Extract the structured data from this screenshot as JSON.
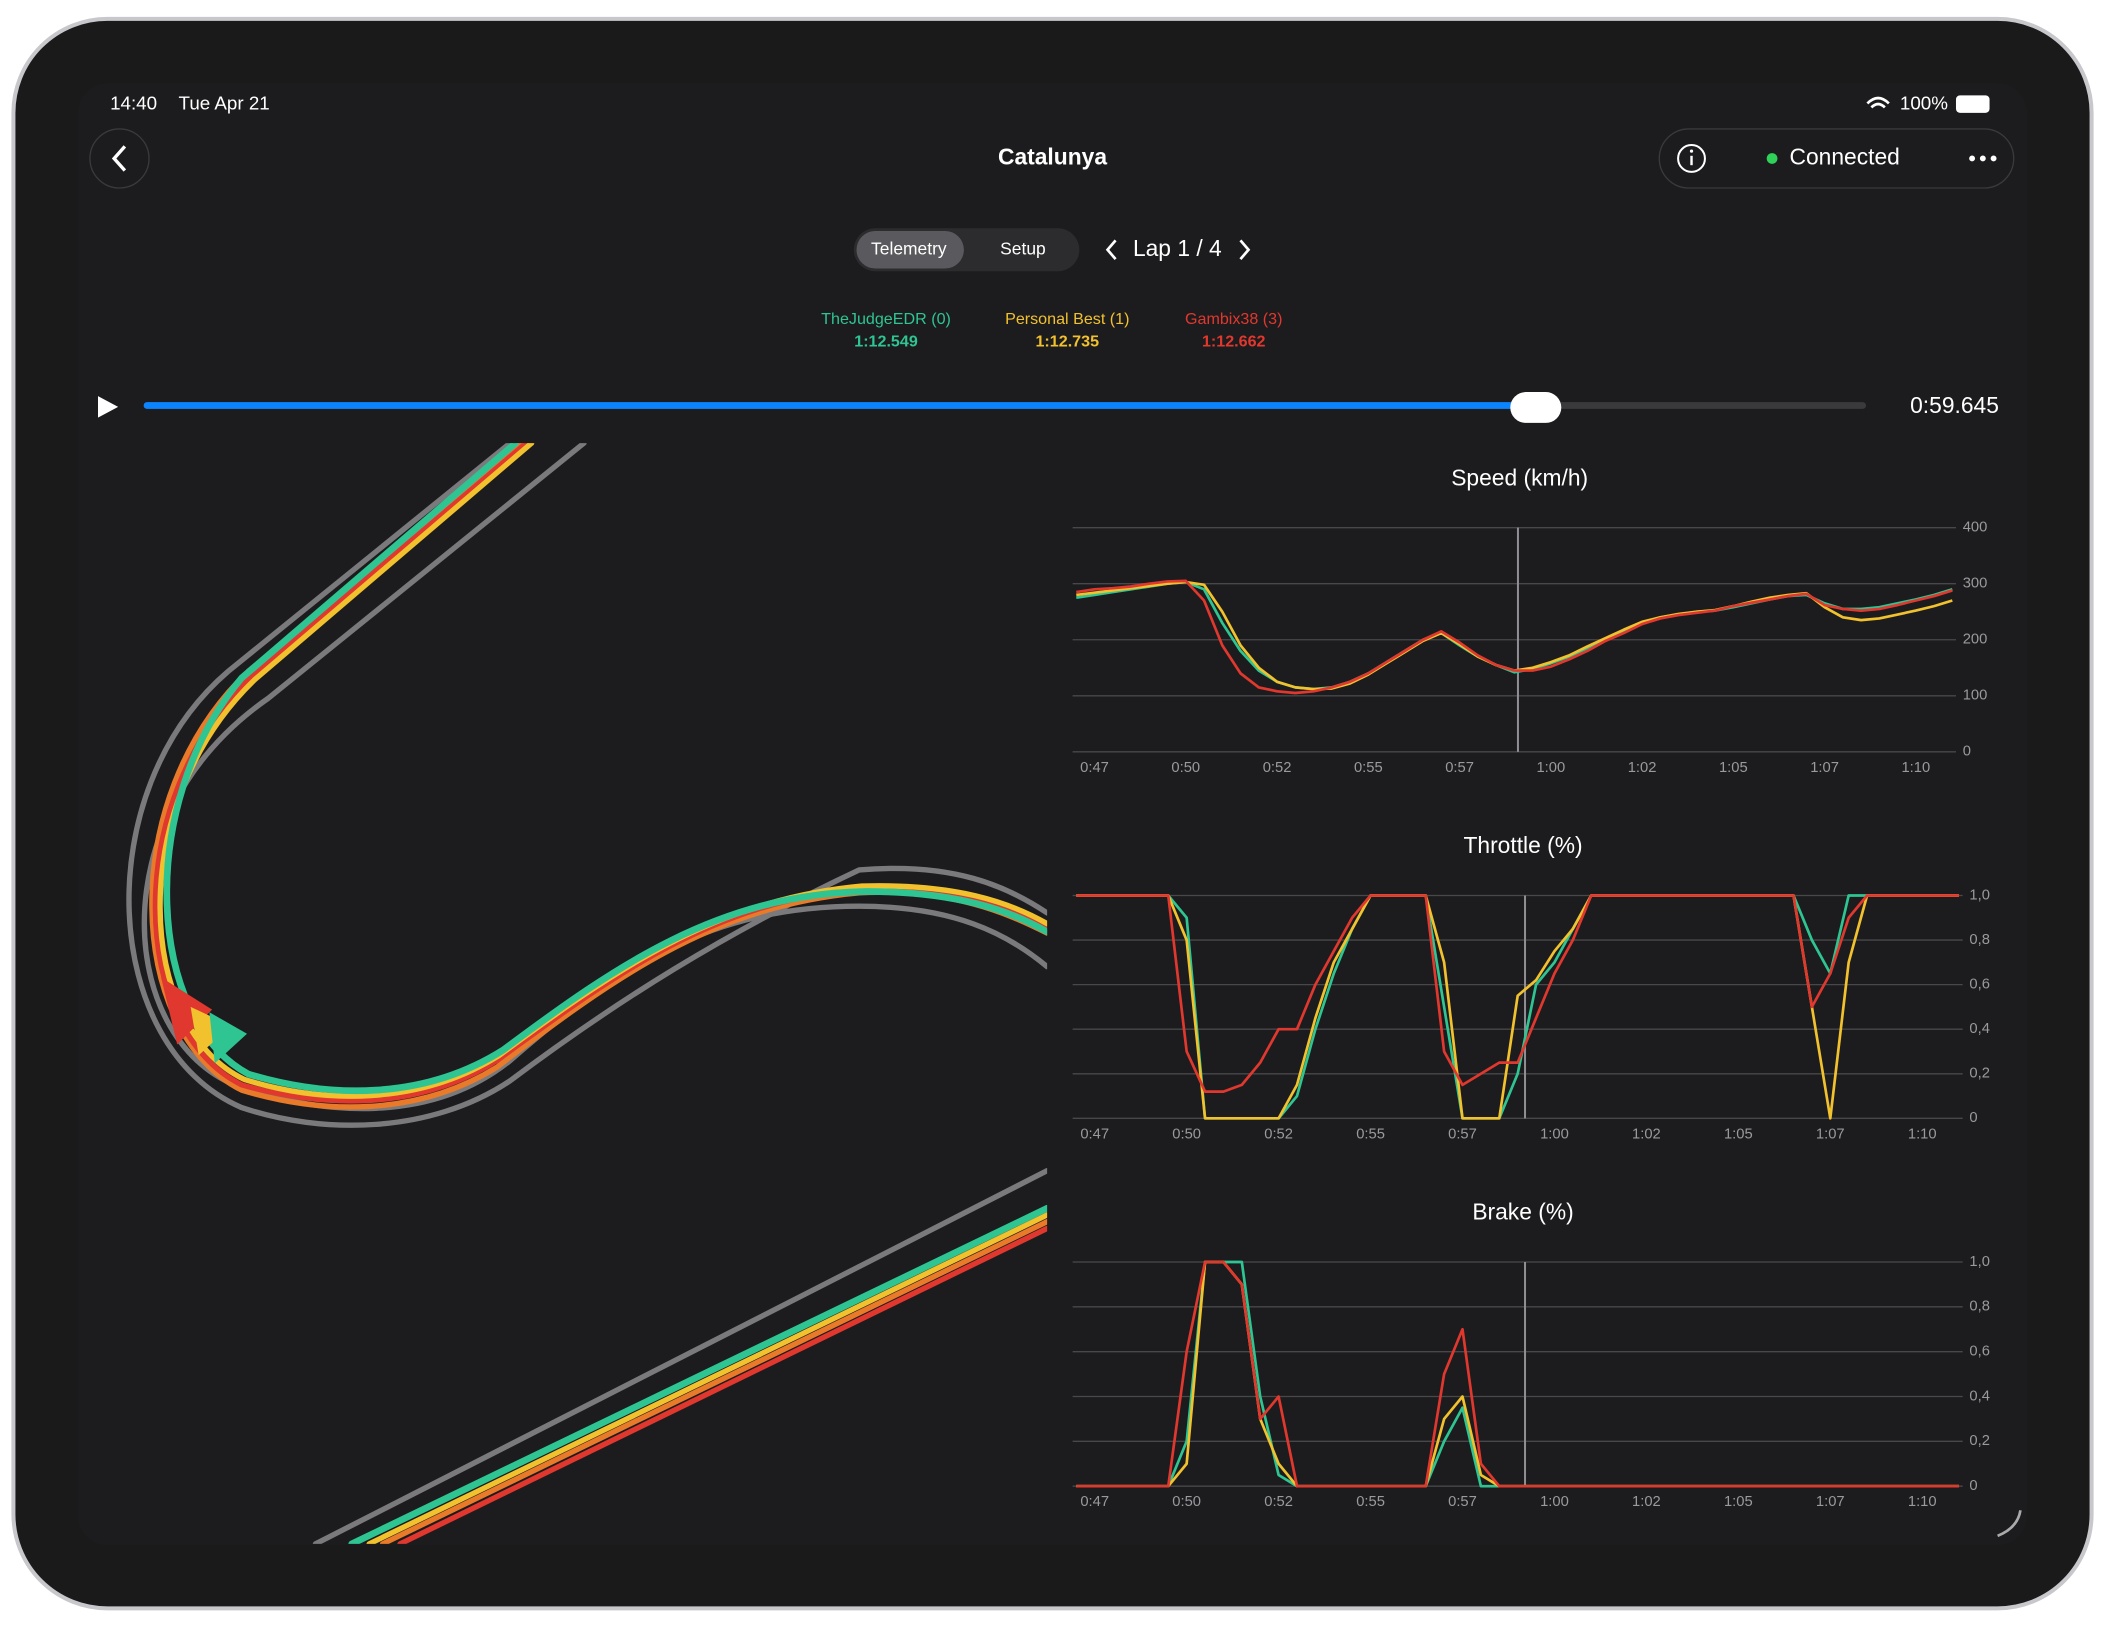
{
  "status_bar": {
    "time": "14:40",
    "date": "Tue Apr 21",
    "battery": "100%"
  },
  "header": {
    "title": "Catalunya",
    "status": "Connected"
  },
  "tabs": [
    "Telemetry",
    "Setup"
  ],
  "lap": "Lap 1 / 4",
  "drivers": [
    {
      "name": "TheJudgeEDR (0)",
      "time": "1:12.549",
      "color": "#2ec592"
    },
    {
      "name": "Personal Best (1)",
      "time": "1:12.735",
      "color": "#f2c12e"
    },
    {
      "name": "Gambix38 (3)",
      "time": "1:12.662",
      "color": "#e0382e"
    }
  ],
  "playback": {
    "time": "0:59.645"
  },
  "chart_data": [
    {
      "type": "line",
      "title": "Speed (km/h)",
      "x": [
        47,
        47.5,
        48,
        48.5,
        49,
        49.5,
        50,
        50.5,
        51,
        51.5,
        52,
        52.5,
        53,
        53.5,
        54,
        54.5,
        55,
        55.5,
        56,
        56.5,
        57,
        57.5,
        58,
        58.5,
        59,
        59.5,
        60,
        60.5,
        61,
        61.5,
        62,
        62.5,
        63,
        63.5,
        64,
        64.5,
        65,
        65.5,
        66,
        66.5,
        67,
        67.5,
        68,
        68.5,
        69,
        69.5,
        70,
        70.5,
        71
      ],
      "xlim": [
        46.9,
        71.1
      ],
      "xticks": [
        {
          "value": 47.5,
          "label": "0:47"
        },
        {
          "value": 50,
          "label": "0:50"
        },
        {
          "value": 52.5,
          "label": "0:52"
        },
        {
          "value": 55,
          "label": "0:55"
        },
        {
          "value": 57.5,
          "label": "0:57"
        },
        {
          "value": 60,
          "label": "1:00"
        },
        {
          "value": 62.5,
          "label": "1:02"
        },
        {
          "value": 65,
          "label": "1:05"
        },
        {
          "value": 67.5,
          "label": "1:07"
        },
        {
          "value": 70,
          "label": "1:10"
        }
      ],
      "ylim": [
        0,
        400
      ],
      "yticks": [
        0,
        100,
        200,
        300,
        400
      ],
      "grid": true,
      "cursor": 59.1,
      "series": [
        {
          "name": "TheJudgeEDR (0)",
          "color": "#2ec592",
          "values": [
            275,
            280,
            285,
            290,
            295,
            300,
            303,
            290,
            230,
            180,
            145,
            125,
            115,
            112,
            115,
            125,
            140,
            160,
            180,
            200,
            212,
            190,
            170,
            155,
            142,
            148,
            158,
            170,
            185,
            200,
            215,
            230,
            240,
            245,
            250,
            252,
            258,
            265,
            272,
            278,
            280,
            265,
            255,
            255,
            258,
            265,
            272,
            280,
            290
          ]
        },
        {
          "name": "Personal Best (1)",
          "color": "#f2c12e",
          "values": [
            280,
            284,
            288,
            292,
            296,
            300,
            303,
            298,
            250,
            190,
            150,
            125,
            115,
            112,
            113,
            122,
            138,
            158,
            178,
            198,
            212,
            192,
            170,
            155,
            145,
            150,
            160,
            172,
            188,
            203,
            218,
            232,
            240,
            246,
            250,
            253,
            260,
            268,
            275,
            280,
            283,
            258,
            240,
            235,
            238,
            245,
            252,
            260,
            270
          ]
        },
        {
          "name": "Gambix38 (3)",
          "color": "#e0382e",
          "values": [
            285,
            290,
            292,
            295,
            300,
            304,
            305,
            270,
            190,
            140,
            115,
            108,
            105,
            108,
            115,
            125,
            140,
            160,
            180,
            200,
            215,
            195,
            172,
            155,
            145,
            145,
            152,
            165,
            180,
            198,
            212,
            228,
            238,
            244,
            248,
            252,
            260,
            266,
            272,
            278,
            282,
            262,
            255,
            252,
            255,
            262,
            270,
            278,
            288
          ]
        }
      ]
    },
    {
      "type": "line",
      "title": "Throttle (%)",
      "x": [
        47,
        47.5,
        48,
        48.5,
        49,
        49.5,
        50,
        50.5,
        51,
        51.5,
        52,
        52.5,
        53,
        53.5,
        54,
        54.5,
        55,
        55.5,
        56,
        56.5,
        57,
        57.5,
        58,
        58.5,
        59,
        59.5,
        60,
        60.5,
        61,
        61.5,
        62,
        62.5,
        63,
        63.5,
        64,
        64.5,
        65,
        65.5,
        66,
        66.5,
        67,
        67.5,
        68,
        68.5,
        69,
        69.5,
        70,
        70.5,
        71
      ],
      "xlim": [
        46.9,
        71.1
      ],
      "xticks": [
        {
          "value": 47.5,
          "label": "0:47"
        },
        {
          "value": 50,
          "label": "0:50"
        },
        {
          "value": 52.5,
          "label": "0:52"
        },
        {
          "value": 55,
          "label": "0:55"
        },
        {
          "value": 57.5,
          "label": "0:57"
        },
        {
          "value": 60,
          "label": "1:00"
        },
        {
          "value": 62.5,
          "label": "1:02"
        },
        {
          "value": 65,
          "label": "1:05"
        },
        {
          "value": 67.5,
          "label": "1:07"
        },
        {
          "value": 70,
          "label": "1:10"
        }
      ],
      "ylim": [
        0,
        1
      ],
      "yticks": [
        0,
        {
          "value": 0.2,
          "label": "0,2"
        },
        {
          "value": 0.4,
          "label": "0,4"
        },
        {
          "value": 0.6,
          "label": "0,6"
        },
        {
          "value": 0.8,
          "label": "0,8"
        },
        {
          "value": 1,
          "label": "1,0"
        }
      ],
      "grid": true,
      "cursor": 59.2,
      "series": [
        {
          "name": "TheJudgeEDR (0)",
          "color": "#2ec592",
          "values": [
            1,
            1,
            1,
            1,
            1,
            1,
            0.9,
            0,
            0,
            0,
            0,
            0,
            0.1,
            0.4,
            0.65,
            0.85,
            1,
            1,
            1,
            1,
            0.5,
            0,
            0,
            0,
            0.2,
            0.6,
            0.7,
            0.85,
            1,
            1,
            1,
            1,
            1,
            1,
            1,
            1,
            1,
            1,
            1,
            1,
            0.8,
            0.65,
            1,
            1,
            1,
            1,
            1,
            1,
            1
          ]
        },
        {
          "name": "Personal Best (1)",
          "color": "#f2c12e",
          "values": [
            1,
            1,
            1,
            1,
            1,
            1,
            0.8,
            0,
            0,
            0,
            0,
            0,
            0.15,
            0.45,
            0.7,
            0.85,
            1,
            1,
            1,
            1,
            0.7,
            0,
            0,
            0,
            0.55,
            0.62,
            0.75,
            0.85,
            1,
            1,
            1,
            1,
            1,
            1,
            1,
            1,
            1,
            1,
            1,
            1,
            0.5,
            0,
            0.7,
            1,
            1,
            1,
            1,
            1,
            1
          ]
        },
        {
          "name": "Gambix38 (3)",
          "color": "#e0382e",
          "values": [
            1,
            1,
            1,
            1,
            1,
            1,
            0.3,
            0.12,
            0.12,
            0.15,
            0.25,
            0.4,
            0.4,
            0.6,
            0.75,
            0.9,
            1,
            1,
            1,
            1,
            0.3,
            0.15,
            0.2,
            0.25,
            0.25,
            0.45,
            0.65,
            0.8,
            1,
            1,
            1,
            1,
            1,
            1,
            1,
            1,
            1,
            1,
            1,
            1,
            0.5,
            0.65,
            0.9,
            1,
            1,
            1,
            1,
            1,
            1
          ]
        }
      ]
    },
    {
      "type": "line",
      "title": "Brake (%)",
      "x": [
        47,
        47.5,
        48,
        48.5,
        49,
        49.5,
        50,
        50.5,
        51,
        51.5,
        52,
        52.5,
        53,
        53.5,
        54,
        54.5,
        55,
        55.5,
        56,
        56.5,
        57,
        57.5,
        58,
        58.5,
        59,
        59.5,
        60,
        60.5,
        61,
        61.5,
        62,
        62.5,
        63,
        63.5,
        64,
        64.5,
        65,
        65.5,
        66,
        66.5,
        67,
        67.5,
        68,
        68.5,
        69,
        69.5,
        70,
        70.5,
        71
      ],
      "xlim": [
        46.9,
        71.1
      ],
      "xticks": [
        {
          "value": 47.5,
          "label": "0:47"
        },
        {
          "value": 50,
          "label": "0:50"
        },
        {
          "value": 52.5,
          "label": "0:52"
        },
        {
          "value": 55,
          "label": "0:55"
        },
        {
          "value": 57.5,
          "label": "0:57"
        },
        {
          "value": 60,
          "label": "1:00"
        },
        {
          "value": 62.5,
          "label": "1:02"
        },
        {
          "value": 65,
          "label": "1:05"
        },
        {
          "value": 67.5,
          "label": "1:07"
        },
        {
          "value": 70,
          "label": "1:10"
        }
      ],
      "ylim": [
        0,
        1
      ],
      "yticks": [
        0,
        {
          "value": 0.2,
          "label": "0,2"
        },
        {
          "value": 0.4,
          "label": "0,4"
        },
        {
          "value": 0.6,
          "label": "0,6"
        },
        {
          "value": 0.8,
          "label": "0,8"
        },
        {
          "value": 1,
          "label": "1,0"
        }
      ],
      "grid": true,
      "cursor": 59.2,
      "series": [
        {
          "name": "TheJudgeEDR (0)",
          "color": "#2ec592",
          "values": [
            0,
            0,
            0,
            0,
            0,
            0,
            0.2,
            1,
            1,
            1,
            0.4,
            0.05,
            0,
            0,
            0,
            0,
            0,
            0,
            0,
            0,
            0.2,
            0.35,
            0,
            0,
            0,
            0,
            0,
            0,
            0,
            0,
            0,
            0,
            0,
            0,
            0,
            0,
            0,
            0,
            0,
            0,
            0,
            0,
            0,
            0,
            0,
            0,
            0,
            0,
            0
          ]
        },
        {
          "name": "Personal Best (1)",
          "color": "#f2c12e",
          "values": [
            0,
            0,
            0,
            0,
            0,
            0,
            0.1,
            1,
            1,
            0.9,
            0.3,
            0.1,
            0,
            0,
            0,
            0,
            0,
            0,
            0,
            0,
            0.3,
            0.4,
            0.05,
            0,
            0,
            0,
            0,
            0,
            0,
            0,
            0,
            0,
            0,
            0,
            0,
            0,
            0,
            0,
            0,
            0,
            0,
            0,
            0,
            0,
            0,
            0,
            0,
            0,
            0
          ]
        },
        {
          "name": "Gambix38 (3)",
          "color": "#e0382e",
          "values": [
            0,
            0,
            0,
            0,
            0,
            0,
            0.6,
            1,
            1,
            0.9,
            0.3,
            0.4,
            0,
            0,
            0,
            0,
            0,
            0,
            0,
            0,
            0.5,
            0.7,
            0.1,
            0,
            0,
            0,
            0,
            0,
            0,
            0,
            0,
            0,
            0,
            0,
            0,
            0,
            0,
            0,
            0,
            0,
            0,
            0,
            0,
            0,
            0,
            0,
            0,
            0,
            0
          ]
        }
      ]
    }
  ]
}
